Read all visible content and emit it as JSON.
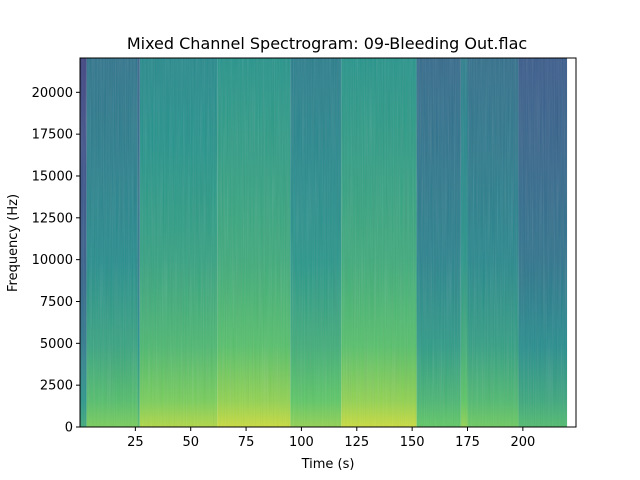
{
  "chart_data": {
    "type": "heatmap",
    "title": "Mixed Channel Spectrogram: 09-Bleeding Out.flac",
    "xlabel": "Time (s)",
    "ylabel": "Frequency (Hz)",
    "xlim": [
      0,
      224
    ],
    "ylim": [
      0,
      22050
    ],
    "xticks": [
      25,
      50,
      75,
      100,
      125,
      150,
      175,
      200
    ],
    "yticks": [
      0,
      2500,
      5000,
      7500,
      10000,
      12500,
      15000,
      17500,
      20000
    ],
    "colormap": "viridis",
    "color_low": "#440154",
    "color_high": "#fde725",
    "segments": [
      {
        "start": 0,
        "end": 3,
        "level": 0.28
      },
      {
        "start": 3,
        "end": 26,
        "level": 0.46
      },
      {
        "start": 26,
        "end": 27,
        "level": 0.38
      },
      {
        "start": 27,
        "end": 62,
        "level": 0.55
      },
      {
        "start": 62,
        "end": 95,
        "level": 0.59
      },
      {
        "start": 95,
        "end": 118,
        "level": 0.5
      },
      {
        "start": 118,
        "end": 152,
        "level": 0.59
      },
      {
        "start": 152,
        "end": 172,
        "level": 0.42
      },
      {
        "start": 172,
        "end": 175,
        "level": 0.5
      },
      {
        "start": 175,
        "end": 198,
        "level": 0.44
      },
      {
        "start": 198,
        "end": 220,
        "level": 0.36
      },
      {
        "start": 220,
        "end": 224,
        "level": 0.0
      }
    ]
  }
}
